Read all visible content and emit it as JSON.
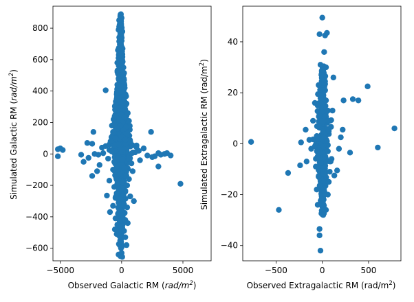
{
  "chart_data": [
    {
      "type": "scatter",
      "xlabel": "Observed Galactic RM ($rad/m^2$)",
      "ylabel": "Simulated Galactic RM ($rad/m^2$)",
      "xlim": [
        -5600,
        7300
      ],
      "ylim": [
        -680,
        940
      ],
      "xticks": [
        -5000,
        0,
        5000
      ],
      "yticks": [
        -600,
        -400,
        -200,
        0,
        200,
        400,
        600,
        800
      ],
      "tick_labels": {
        "x": [
          "−5000",
          "0",
          "5000"
        ],
        "y": [
          "−600",
          "−400",
          "−200",
          "0",
          "200",
          "400",
          "600",
          "800"
        ]
      },
      "axis_labels": {
        "x_prefix": "Observed Galactic RM (",
        "x_unit": "rad/m",
        "x_exp": "2",
        "x_suffix": ")",
        "y_prefix": "Simulated Galactic RM (",
        "y_unit": "rad/m",
        "y_exp": "2",
        "y_suffix": ")"
      },
      "color": "#1f77b4",
      "grid": false,
      "series": [
        {
          "points": [
            [
              0,
              865
            ],
            [
              -200,
              850
            ],
            [
              -100,
              820
            ],
            [
              -250,
              790
            ],
            [
              -100,
              760
            ],
            [
              -150,
              730
            ],
            [
              -100,
              710
            ],
            [
              -50,
              690
            ],
            [
              -300,
              660
            ],
            [
              -200,
              640
            ],
            [
              -100,
              630
            ],
            [
              -250,
              610
            ],
            [
              -50,
              590
            ],
            [
              -350,
              580
            ],
            [
              -150,
              560
            ],
            [
              150,
              550
            ],
            [
              -200,
              540
            ],
            [
              -50,
              530
            ],
            [
              100,
              520
            ],
            [
              -300,
              510
            ],
            [
              -150,
              500
            ],
            [
              50,
              490
            ],
            [
              -250,
              480
            ],
            [
              200,
              470
            ],
            [
              -100,
              460
            ],
            [
              150,
              450
            ],
            [
              -350,
              440
            ],
            [
              -50,
              430
            ],
            [
              250,
              420
            ],
            [
              -1300,
              405
            ],
            [
              -200,
              400
            ],
            [
              100,
              390
            ],
            [
              -400,
              380
            ],
            [
              350,
              370
            ],
            [
              0,
              360
            ],
            [
              -250,
              350
            ],
            [
              200,
              340
            ],
            [
              -100,
              330
            ],
            [
              400,
              320
            ],
            [
              -500,
              310
            ],
            [
              50,
              300
            ],
            [
              -300,
              290
            ],
            [
              300,
              280
            ],
            [
              -150,
              270
            ],
            [
              500,
              260
            ],
            [
              -50,
              250
            ],
            [
              -450,
              240
            ],
            [
              250,
              230
            ],
            [
              -200,
              220
            ],
            [
              600,
              210
            ],
            [
              100,
              200
            ],
            [
              -600,
              190
            ],
            [
              -100,
              180
            ],
            [
              350,
              170
            ],
            [
              -350,
              160
            ],
            [
              150,
              150
            ],
            [
              -700,
              140
            ],
            [
              -2300,
              140
            ],
            [
              2400,
              140
            ],
            [
              450,
              130
            ],
            [
              -150,
              120
            ],
            [
              0,
              110
            ],
            [
              -500,
              100
            ],
            [
              300,
              90
            ],
            [
              -900,
              80
            ],
            [
              700,
              75
            ],
            [
              -2800,
              70
            ],
            [
              -2400,
              65
            ],
            [
              -250,
              60
            ],
            [
              900,
              55
            ],
            [
              -1300,
              50
            ],
            [
              1200,
              45
            ],
            [
              -1600,
              40
            ],
            [
              1800,
              35
            ],
            [
              -5200,
              30
            ],
            [
              -5000,
              35
            ],
            [
              -4800,
              25
            ],
            [
              -3300,
              -5
            ],
            [
              -5200,
              -15
            ],
            [
              3000,
              5
            ],
            [
              3500,
              0
            ],
            [
              3200,
              -5
            ],
            [
              4000,
              -10
            ],
            [
              3700,
              5
            ],
            [
              2700,
              -15
            ],
            [
              -1000,
              25
            ],
            [
              1400,
              20
            ],
            [
              -800,
              15
            ],
            [
              1100,
              10
            ],
            [
              -1500,
              5
            ],
            [
              -2200,
              0
            ],
            [
              -1900,
              -5
            ],
            [
              2100,
              -10
            ],
            [
              2500,
              -20
            ],
            [
              -2700,
              -25
            ],
            [
              -3100,
              -50
            ],
            [
              -1100,
              -30
            ],
            [
              1500,
              -40
            ],
            [
              -600,
              -50
            ],
            [
              800,
              -60
            ],
            [
              -1800,
              -70
            ],
            [
              -2400,
              -140
            ],
            [
              -400,
              -80
            ],
            [
              200,
              -90
            ],
            [
              -700,
              -100
            ],
            [
              900,
              -110
            ],
            [
              -250,
              -120
            ],
            [
              4800,
              -190
            ],
            [
              3000,
              -80
            ],
            [
              -2000,
              -110
            ],
            [
              -150,
              -130
            ],
            [
              350,
              -140
            ],
            [
              -450,
              -150
            ],
            [
              600,
              -160
            ],
            [
              -1000,
              -170
            ],
            [
              100,
              -180
            ],
            [
              -350,
              -190
            ],
            [
              450,
              -200
            ],
            [
              -600,
              -210
            ],
            [
              50,
              -220
            ],
            [
              -200,
              -230
            ],
            [
              300,
              -240
            ],
            [
              -1200,
              -265
            ],
            [
              -400,
              -250
            ],
            [
              150,
              -260
            ],
            [
              700,
              -270
            ],
            [
              -500,
              -280
            ],
            [
              -100,
              -290
            ],
            [
              1000,
              -300
            ],
            [
              -250,
              -310
            ],
            [
              200,
              -320
            ],
            [
              -700,
              -330
            ],
            [
              450,
              -340
            ],
            [
              -950,
              -370
            ],
            [
              -300,
              -380
            ],
            [
              100,
              -390
            ],
            [
              -500,
              -410
            ],
            [
              300,
              -420
            ],
            [
              -150,
              -430
            ],
            [
              500,
              -440
            ],
            [
              -350,
              -450
            ],
            [
              0,
              -460
            ],
            [
              -550,
              -480
            ],
            [
              200,
              -490
            ],
            [
              -400,
              -510
            ],
            [
              -200,
              -520
            ],
            [
              300,
              -530
            ],
            [
              -100,
              -560
            ],
            [
              400,
              -580
            ],
            [
              -50,
              -600
            ],
            [
              0,
              -630
            ],
            [
              -250,
              -640
            ],
            [
              -100,
              -650
            ],
            [
              50,
              -655
            ]
          ],
          "core_bands": [
            {
              "y_range": [
                -590,
                890
              ],
              "x_center": -80,
              "x_half": 180,
              "n": 500
            },
            {
              "y_range": [
                -500,
                680
              ],
              "x_center": -60,
              "x_half": 350,
              "n": 700
            },
            {
              "y_range": [
                -300,
                450
              ],
              "x_center": -50,
              "x_half": 550,
              "n": 500
            },
            {
              "y_range": [
                -150,
                250
              ],
              "x_center": 0,
              "x_half": 900,
              "n": 250
            }
          ]
        }
      ]
    },
    {
      "type": "scatter",
      "xlabel": "Observed Extragalactic RM (rad/m$^2$)",
      "ylabel": "Simulated Extragalactic RM (rad/m$^2$)",
      "xlim": [
        -860,
        850
      ],
      "ylim": [
        -46,
        54
      ],
      "xticks": [
        -500,
        0,
        500
      ],
      "yticks": [
        -40,
        -20,
        0,
        20,
        40
      ],
      "tick_labels": {
        "x": [
          "−500",
          "0",
          "500"
        ],
        "y": [
          "−40",
          "−20",
          "0",
          "20",
          "40"
        ]
      },
      "axis_labels": {
        "x_prefix": "Observed Extragalactic RM (rad/m",
        "x_exp": "2",
        "x_suffix": ")",
        "y_prefix": "Simulated Extragalactic RM (rad/m",
        "y_exp": "2",
        "y_suffix": ")"
      },
      "color": "#1f77b4",
      "grid": false,
      "series": [
        {
          "points": [
            [
              -770,
              0.7
            ],
            [
              780,
              6
            ],
            [
              600,
              -1.5
            ],
            [
              490,
              22.5
            ],
            [
              390,
              17
            ],
            [
              330,
              17.5
            ],
            [
              300,
              -3.5
            ],
            [
              230,
              17
            ],
            [
              220,
              5.5
            ],
            [
              200,
              2.5
            ],
            [
              180,
              -2
            ],
            [
              160,
              -10.5
            ],
            [
              130,
              -12.5
            ],
            [
              120,
              26
            ],
            [
              110,
              13
            ],
            [
              100,
              -6
            ],
            [
              -470,
              -26
            ],
            [
              -370,
              -11.5
            ],
            [
              -240,
              -8.5
            ],
            [
              -230,
              0.5
            ],
            [
              -180,
              5.5
            ],
            [
              -170,
              -7
            ],
            [
              -140,
              1.5
            ],
            [
              -120,
              -2
            ],
            [
              -100,
              9
            ],
            [
              -80,
              16
            ],
            [
              -30,
              43
            ],
            [
              0,
              49.5
            ],
            [
              30,
              42.5
            ],
            [
              50,
              43.5
            ],
            [
              20,
              36
            ],
            [
              -20,
              31
            ],
            [
              40,
              30
            ],
            [
              -30,
              -33.5
            ],
            [
              -30,
              -36
            ],
            [
              -20,
              -42
            ],
            [
              10,
              -28
            ],
            [
              40,
              -26
            ],
            [
              -50,
              -24
            ],
            [
              60,
              -20
            ],
            [
              -60,
              -18
            ],
            [
              70,
              -15
            ],
            [
              -40,
              -13
            ],
            [
              80,
              -11
            ],
            [
              -70,
              -9
            ],
            [
              90,
              -7
            ],
            [
              -50,
              -5
            ],
            [
              60,
              -3
            ],
            [
              -80,
              -1
            ],
            [
              50,
              1
            ],
            [
              -60,
              3
            ],
            [
              70,
              5
            ],
            [
              -40,
              7
            ],
            [
              80,
              9
            ],
            [
              -30,
              11
            ],
            [
              60,
              13
            ],
            [
              -50,
              15
            ],
            [
              40,
              17
            ],
            [
              -20,
              19
            ],
            [
              30,
              21
            ],
            [
              -40,
              23
            ],
            [
              20,
              25
            ],
            [
              -10,
              27
            ],
            [
              10,
              29
            ]
          ],
          "core_bands": [
            {
              "y_range": [
                -28,
                31
              ],
              "x_center": 5,
              "x_half": 40,
              "n": 300
            },
            {
              "y_range": [
                -18,
                22
              ],
              "x_center": 5,
              "x_half": 75,
              "n": 150
            }
          ]
        }
      ]
    }
  ]
}
